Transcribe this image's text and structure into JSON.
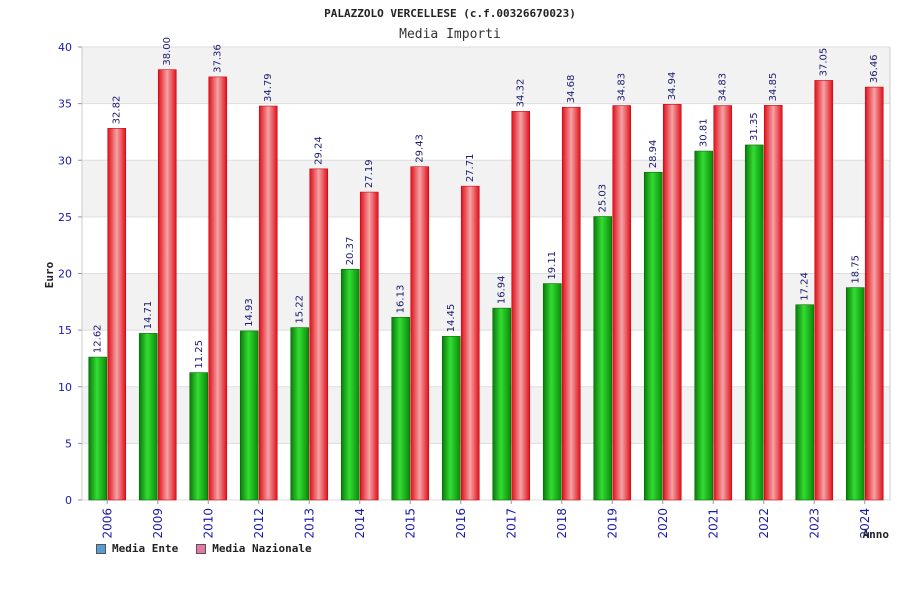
{
  "chart_data": {
    "type": "bar",
    "title": "PALAZZOLO VERCELLESE (c.f.00326670023)",
    "subtitle": "Media Importi",
    "xlabel": "Anno",
    "ylabel": "Euro",
    "ylim": [
      0,
      40
    ],
    "yticks": [
      0,
      5,
      10,
      15,
      20,
      25,
      30,
      35,
      40
    ],
    "grid": true,
    "legend_position": "bottom-left",
    "categories": [
      "2006",
      "2009",
      "2010",
      "2012",
      "2013",
      "2014",
      "2015",
      "2016",
      "2017",
      "2018",
      "2019",
      "2020",
      "2021",
      "2022",
      "2023",
      "2024"
    ],
    "series": [
      {
        "name": "Media Ente",
        "color": "#22bb22",
        "legend_color": "#5b9bd5",
        "values": [
          12.62,
          14.71,
          11.25,
          14.93,
          15.22,
          20.37,
          16.13,
          14.45,
          16.94,
          19.11,
          25.03,
          28.94,
          30.81,
          31.35,
          17.24,
          18.75
        ],
        "labels": [
          "12.62",
          "14.71",
          "11.25",
          "14.93",
          "15.22",
          "20.37",
          "16.13",
          "14.45",
          "16.94",
          "19.11",
          "25.03",
          "28.94",
          "30.81",
          "31.35",
          "17.24",
          "18.75"
        ]
      },
      {
        "name": "Media Nazionale",
        "color": "#ee1c24",
        "legend_color": "#e377a8",
        "values": [
          32.82,
          38.0,
          37.36,
          34.79,
          29.24,
          27.19,
          29.43,
          27.71,
          34.32,
          34.68,
          34.83,
          34.94,
          34.83,
          34.85,
          37.05,
          36.46
        ],
        "labels": [
          "32.82",
          "38.00",
          "37.36",
          "34.79",
          "29.24",
          "27.19",
          "29.43",
          "27.71",
          "34.32",
          "34.68",
          "34.83",
          "34.94",
          "34.83",
          "34.85",
          "37.05",
          "36.46"
        ]
      }
    ]
  }
}
